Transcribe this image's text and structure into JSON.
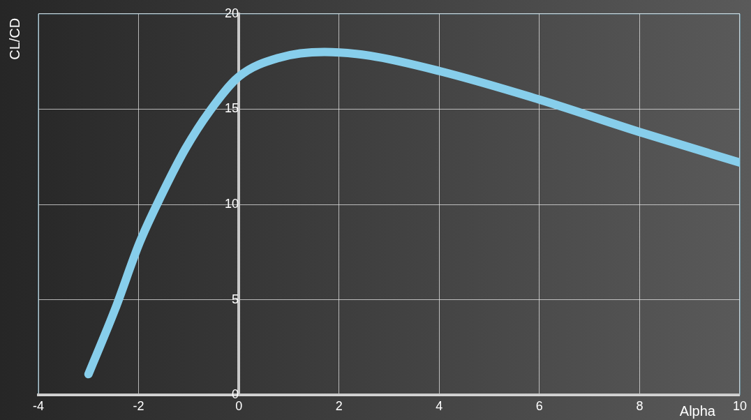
{
  "chart_data": {
    "type": "line",
    "xlabel": "Alpha",
    "ylabel": "CL/CD",
    "x": [
      -3.0,
      -2.47,
      -1.98,
      -1.56,
      -1.07,
      -0.58,
      0,
      0.81,
      1.71,
      2.62,
      4.0,
      6.0,
      8.0,
      10.0
    ],
    "series": [
      {
        "color": "#87ceeb",
        "values": [
          1.1,
          4.5,
          8.0,
          10.4,
          12.9,
          14.9,
          16.7,
          17.7,
          18.0,
          17.8,
          17.0,
          15.5,
          13.8,
          12.2
        ]
      }
    ],
    "xlim": [
      -4,
      10
    ],
    "xticks": [
      -4,
      -2,
      0,
      2,
      4,
      6,
      8,
      10
    ],
    "ylim": [
      0,
      20
    ],
    "yticks": [
      0,
      5,
      10,
      15,
      20
    ],
    "grid": true,
    "legend": false,
    "marker": "none",
    "line_style": "solid"
  }
}
